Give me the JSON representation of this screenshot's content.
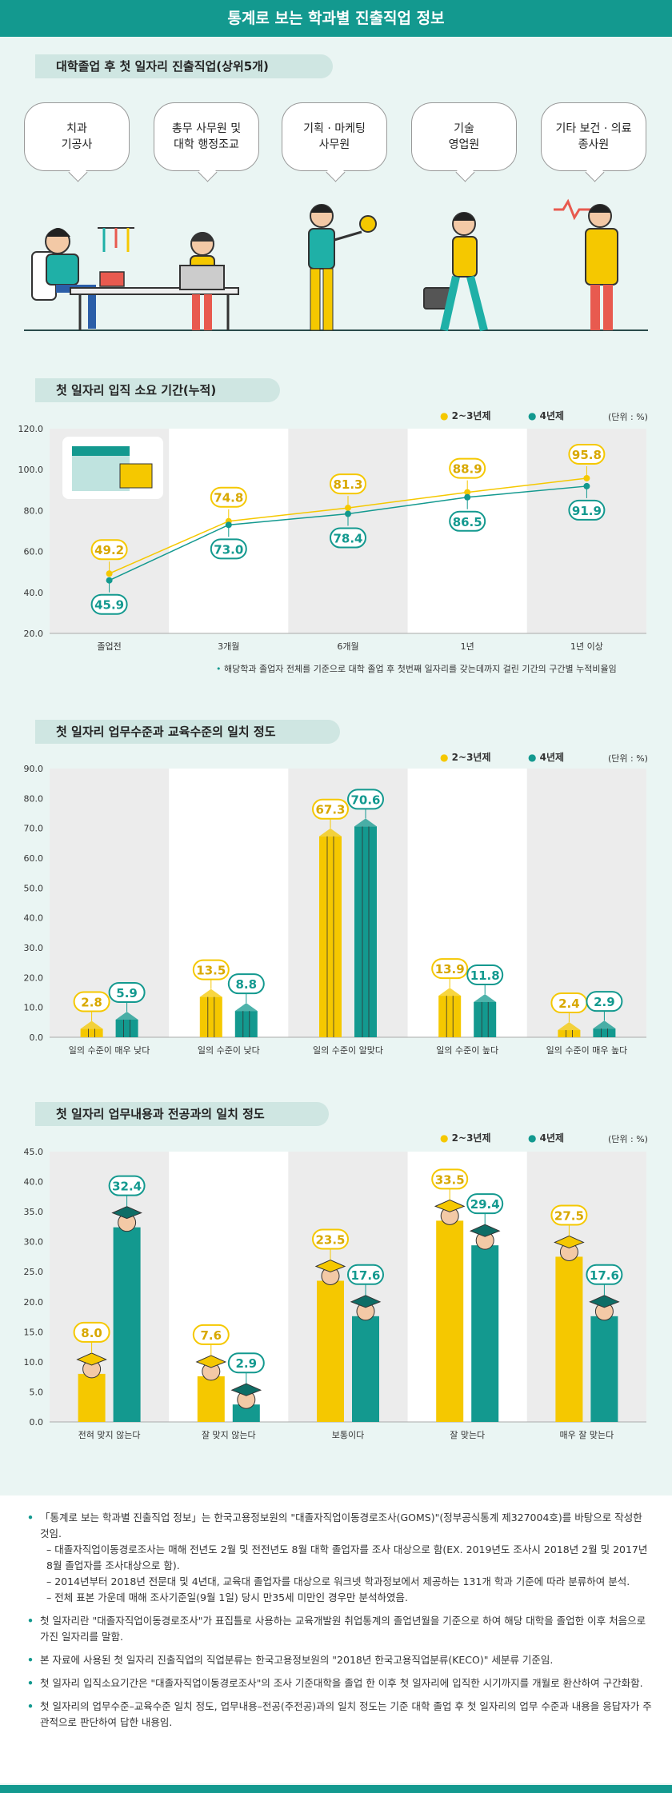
{
  "header": {
    "title": "통계로 보는 학과별 진출직업 정보"
  },
  "section1": {
    "title": "대학졸업 후 첫 일자리 진출직업(상위5개)",
    "jobs": [
      {
        "line1": "치과",
        "line2": "기공사"
      },
      {
        "line1": "총무 사무원 및",
        "line2": "대학 행정조교"
      },
      {
        "line1": "기획 · 마케팅",
        "line2": "사무원"
      },
      {
        "line1": "기술",
        "line2": "영업원"
      },
      {
        "line1": "기타 보건 · 의료",
        "line2": "종사원"
      }
    ]
  },
  "section2": {
    "title": "첫 일자리 입직 소요 기간(누적)",
    "legend": [
      "2~3년제",
      "4년제"
    ],
    "unit": "(단위 : %)",
    "note": "해당학과 졸업자 전체를 기준으로 대학 졸업 후 첫번째 일자리를 갖는데까지 걸린 기간의 구간별 누적비율임"
  },
  "section3": {
    "title": "첫 일자리 업무수준과 교육수준의 일치 정도",
    "legend": [
      "2~3년제",
      "4년제"
    ],
    "unit": "(단위 : %)"
  },
  "section4": {
    "title": "첫 일자리 업무내용과 전공과의 일치 정도",
    "legend": [
      "2~3년제",
      "4년제"
    ],
    "unit": "(단위 : %)"
  },
  "chart_data": [
    {
      "type": "line",
      "title": "첫 일자리 입직 소요 기간(누적)",
      "categories": [
        "졸업전",
        "3개월",
        "6개월",
        "1년",
        "1년 이상"
      ],
      "series": [
        {
          "name": "2~3년제",
          "values": [
            49.2,
            74.8,
            81.3,
            88.9,
            95.8
          ],
          "color": "#f5c800"
        },
        {
          "name": "4년제",
          "values": [
            45.9,
            73.0,
            78.4,
            86.5,
            91.9
          ],
          "color": "#13998f"
        }
      ],
      "yticks": [
        "20.0",
        "40.0",
        "60.0",
        "80.0",
        "100.0",
        "120.0"
      ],
      "ylim": [
        20,
        120
      ],
      "grid": false
    },
    {
      "type": "bar",
      "title": "첫 일자리 업무수준과 교육수준의 일치 정도",
      "categories": [
        "일의 수준이 매우 낮다",
        "일의 수준이 낮다",
        "일의 수준이 알맞다",
        "일의 수준이 높다",
        "일의 수준이 매우 높다"
      ],
      "series": [
        {
          "name": "2~3년제",
          "values": [
            2.8,
            13.5,
            67.3,
            13.9,
            2.4
          ],
          "color": "#f5c800"
        },
        {
          "name": "4년제",
          "values": [
            5.9,
            8.8,
            70.6,
            11.8,
            2.9
          ],
          "color": "#13998f"
        }
      ],
      "yticks": [
        "0.0",
        "10.0",
        "20.0",
        "30.0",
        "40.0",
        "50.0",
        "60.0",
        "70.0",
        "80.0",
        "90.0"
      ],
      "ylim": [
        0,
        90
      ]
    },
    {
      "type": "bar",
      "title": "첫 일자리 업무내용과 전공과의 일치 정도",
      "categories": [
        "전혀 맞지 않는다",
        "잘 맞지 않는다",
        "보통이다",
        "잘 맞는다",
        "매우 잘 맞는다"
      ],
      "series": [
        {
          "name": "2~3년제",
          "values": [
            8.0,
            7.6,
            23.5,
            33.5,
            27.5
          ],
          "color": "#f5c800"
        },
        {
          "name": "4년제",
          "values": [
            32.4,
            2.9,
            17.6,
            29.4,
            17.6
          ],
          "color": "#13998f"
        }
      ],
      "yticks": [
        "0.0",
        "5.0",
        "10.0",
        "15.0",
        "20.0",
        "25.0",
        "30.0",
        "35.0",
        "40.0",
        "45.0"
      ],
      "ylim": [
        0,
        45
      ]
    }
  ],
  "footnotes": {
    "items": [
      {
        "lines": [
          "「통계로 보는 학과별 진출직업 정보」는 한국고용정보원의 \"대졸자직업이동경로조사(GOMS)\"(정부공식통계 제327004호)를 바탕으로 작성한 것임.",
          "– 대졸자직업이동경로조사는 매해 전년도 2월 및 전전년도 8월 대학 졸업자를 조사 대상으로 함(EX. 2019년도 조사시 2018년 2월 및 2017년 8월 졸업자를 조사대상으로 함).",
          "– 2014년부터 2018년 전문대 및 4년대, 교육대 졸업자를 대상으로 워크넷 학과정보에서 제공하는 131개 학과 기준에 따라 분류하여 분석.",
          "– 전체 표본 가운데 매해 조사기준일(9월 1일) 당시 만35세 미만인 경우만 분석하였음."
        ]
      },
      {
        "lines": [
          "첫 일자리란 \"대졸자직업이동경로조사\"가 표집틀로 사용하는 교육개발원 취업통계의 졸업년월을 기준으로 하여 해당 대학을 졸업한 이후 처음으로 가진 일자리를 말함."
        ]
      },
      {
        "lines": [
          "본 자료에 사용된 첫 일자리 진출직업의 직업분류는 한국고용정보원의 \"2018년 한국고용직업분류(KECO)\" 세분류 기준임."
        ]
      },
      {
        "lines": [
          "첫 일자리 입직소요기간은 \"대졸자직업이동경로조사\"의 조사 기준대학을 졸업 한 이후 첫 일자리에 입직한 시기까지를 개월로 환산하여 구간화함."
        ]
      },
      {
        "lines": [
          "첫 일자리의 업무수준–교육수준 일치 정도, 업무내용–전공(주전공)과의 일치 정도는 기준 대학 졸업 후 첫 일자리의 업무 수준과 내용을 응답자가 주관적으로 판단하여 답한 내용임."
        ]
      }
    ]
  }
}
